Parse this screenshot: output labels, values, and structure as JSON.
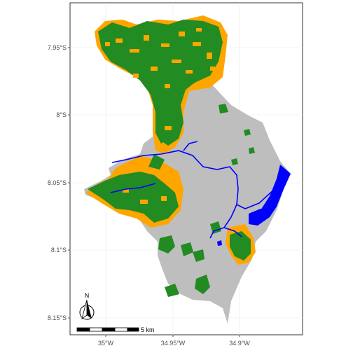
{
  "map": {
    "y_ticks": [
      "7.95°S",
      "8°S",
      "8.05°S",
      "8.1°S",
      "8.15°S"
    ],
    "x_ticks": [
      "35°W",
      "34.95°W",
      "34.9°W"
    ],
    "scale_bar_label": "5 km",
    "north_arrow_label": "N",
    "legend_colors": {
      "forest": "#228b22",
      "agriculture": "#ffa500",
      "urban": "#bebebe",
      "water": "#0000ff"
    },
    "background": "#ffffff",
    "grid_color": "#ebebeb",
    "frame_color": "#333333"
  }
}
